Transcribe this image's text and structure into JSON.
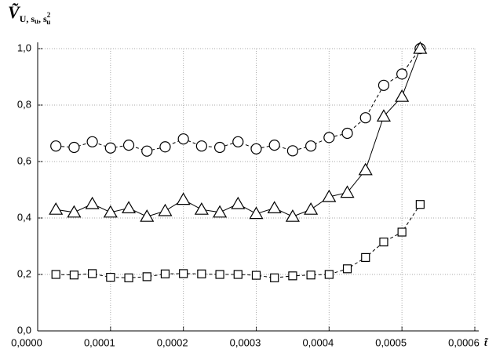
{
  "chart_data": {
    "type": "line",
    "y_label": [
      "Ṽ",
      "U, s",
      "u",
      ", s",
      "2",
      "u"
    ],
    "x_label": "t̃",
    "x": [
      2.5e-05,
      5e-05,
      7.5e-05,
      0.0001,
      0.000125,
      0.00015,
      0.000175,
      0.0002,
      0.000225,
      0.00025,
      0.000275,
      0.0003,
      0.000325,
      0.00035,
      0.000375,
      0.0004,
      0.000425,
      0.00045,
      0.000475,
      0.0005,
      0.000525
    ],
    "series": [
      {
        "color": "#000000",
        "marker": "circle",
        "line_style": "dashed",
        "values": [
          0.655,
          0.65,
          0.67,
          0.648,
          0.658,
          0.637,
          0.652,
          0.68,
          0.655,
          0.65,
          0.67,
          0.645,
          0.658,
          0.638,
          0.655,
          0.685,
          0.7,
          0.755,
          0.87,
          0.91,
          1.0
        ]
      },
      {
        "color": "#000000",
        "marker": "triangle",
        "line_style": "solid",
        "values": [
          0.43,
          0.42,
          0.45,
          0.42,
          0.435,
          0.405,
          0.425,
          0.465,
          0.43,
          0.42,
          0.45,
          0.415,
          0.435,
          0.405,
          0.43,
          0.475,
          0.49,
          0.57,
          0.76,
          0.83,
          1.0
        ]
      },
      {
        "color": "#000000",
        "marker": "square",
        "line_style": "dashed",
        "values": [
          0.2,
          0.198,
          0.203,
          0.19,
          0.188,
          0.192,
          0.202,
          0.203,
          0.202,
          0.2,
          0.2,
          0.197,
          0.188,
          0.195,
          0.198,
          0.2,
          0.22,
          0.26,
          0.315,
          0.35,
          0.448
        ]
      }
    ],
    "xlim": [
      0,
      0.0006
    ],
    "xticks": [
      {
        "value": 0,
        "label": "0,0000"
      },
      {
        "value": 0.0001,
        "label": "0,0001"
      },
      {
        "value": 0.0002,
        "label": "0,0002"
      },
      {
        "value": 0.0003,
        "label": "0,0003"
      },
      {
        "value": 0.0004,
        "label": "0,0004"
      },
      {
        "value": 0.0005,
        "label": "0,0005"
      },
      {
        "value": 0.0006,
        "label": "0,0006"
      }
    ],
    "ylim": [
      0,
      1.0
    ],
    "yticks": [
      {
        "value": 0,
        "label": "0,0"
      },
      {
        "value": 0.2,
        "label": "0,2"
      },
      {
        "value": 0.4,
        "label": "0,4"
      },
      {
        "value": 0.6,
        "label": "0,6"
      },
      {
        "value": 0.8,
        "label": "0,8"
      },
      {
        "value": 1.0,
        "label": "1,0"
      }
    ],
    "grid": true
  }
}
